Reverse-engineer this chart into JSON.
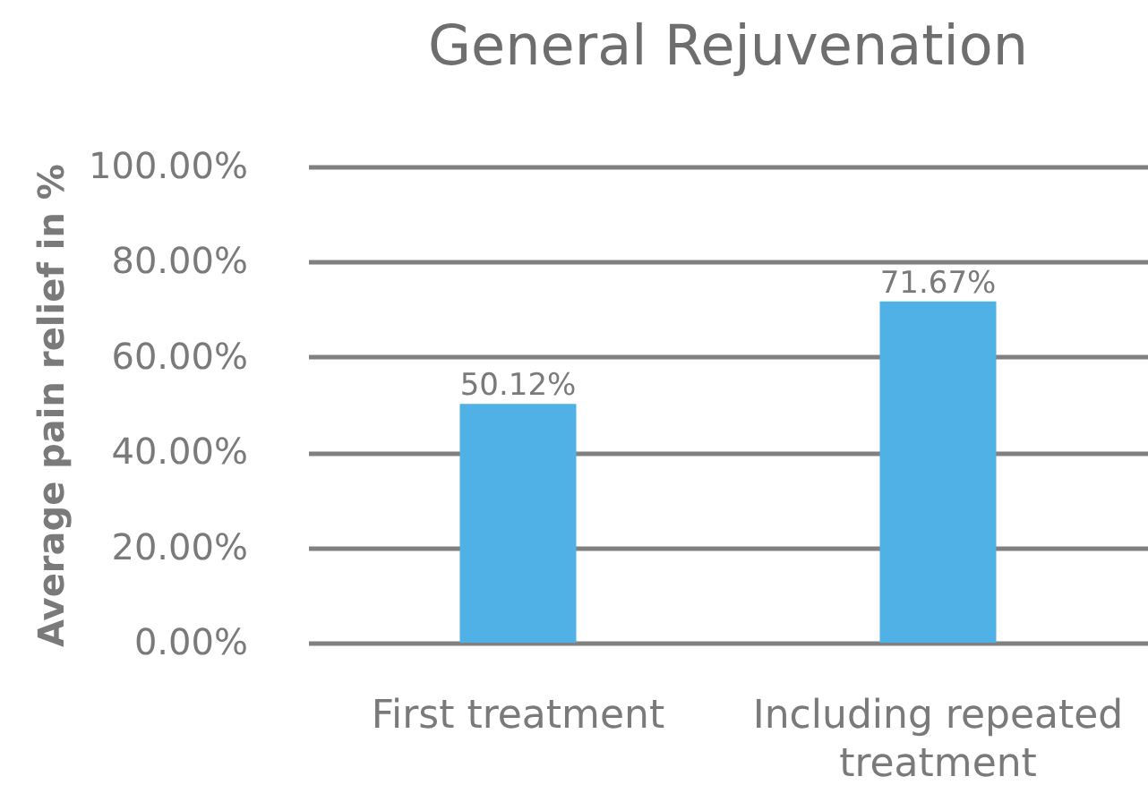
{
  "chart_data": {
    "type": "bar",
    "title": "General Rejuvenation",
    "ylabel": "Average pain relief in %",
    "categories": [
      "First treatment",
      "Including repeated treatment"
    ],
    "values": [
      50.12,
      71.67
    ],
    "color": "#4fb1e6",
    "value_labels": [
      "50.12%",
      "71.67%"
    ],
    "ylim": [
      0,
      100
    ],
    "yticks": [
      {
        "value": 0,
        "label": "0.00%"
      },
      {
        "value": 20,
        "label": "20.00%"
      },
      {
        "value": 40,
        "label": "40.00%"
      },
      {
        "value": 60,
        "label": "60.00%"
      },
      {
        "value": 80,
        "label": "80.00%"
      },
      {
        "value": 100,
        "label": "100.00%"
      }
    ],
    "grid": "y"
  }
}
